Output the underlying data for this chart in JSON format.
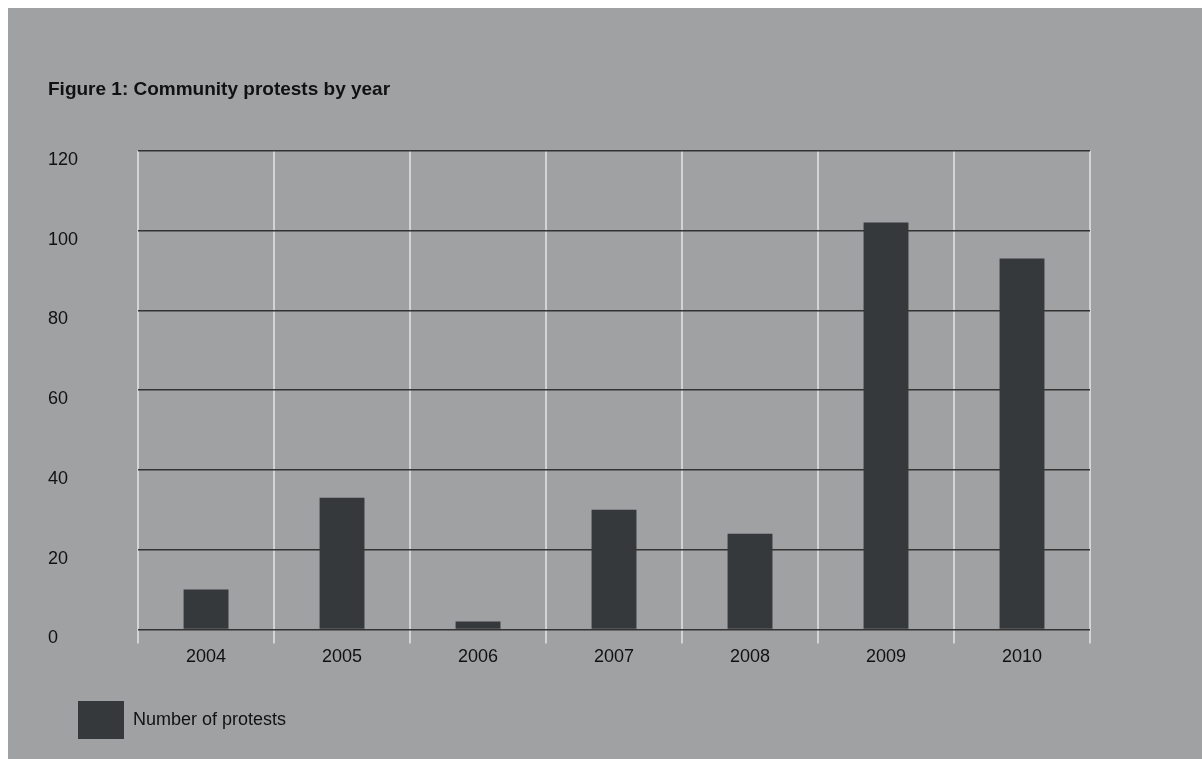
{
  "chart_data": {
    "type": "bar",
    "title": "Figure 1: Community protests by year",
    "categories": [
      "2004",
      "2005",
      "2006",
      "2007",
      "2008",
      "2009",
      "2010"
    ],
    "series": [
      {
        "name": "Number of protests",
        "color": "#36393c",
        "values": [
          10,
          33,
          2,
          30,
          24,
          102,
          93
        ]
      }
    ],
    "ylim": [
      0,
      120
    ],
    "yticks": [
      0,
      20,
      40,
      60,
      80,
      100,
      120
    ],
    "grid": true,
    "legend": "bottom left"
  }
}
